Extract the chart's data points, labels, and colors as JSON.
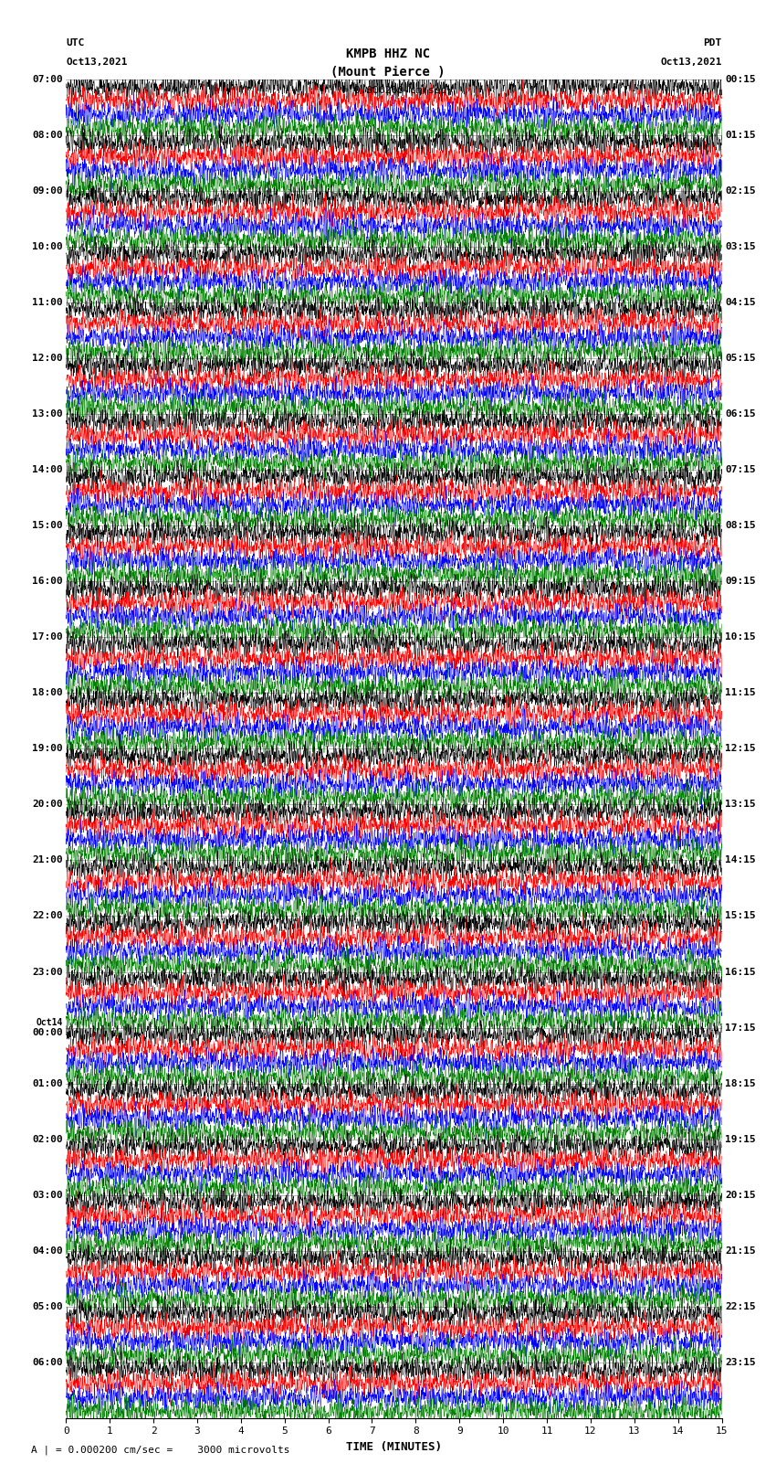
{
  "title_line1": "KMPB HHZ NC",
  "title_line2": "(Mount Pierce )",
  "title_line3": "| = 0.000200 cm/sec",
  "left_header_line1": "UTC",
  "left_header_line2": "Oct13,2021",
  "right_header_line1": "PDT",
  "right_header_line2": "Oct13,2021",
  "xlabel": "TIME (MINUTES)",
  "footer": "A | = 0.000200 cm/sec =    3000 microvolts",
  "left_times": [
    "07:00",
    "08:00",
    "09:00",
    "10:00",
    "11:00",
    "12:00",
    "13:00",
    "14:00",
    "15:00",
    "16:00",
    "17:00",
    "18:00",
    "19:00",
    "20:00",
    "21:00",
    "22:00",
    "23:00",
    "Oct14\n00:00",
    "01:00",
    "02:00",
    "03:00",
    "04:00",
    "05:00",
    "06:00"
  ],
  "right_times": [
    "00:15",
    "01:15",
    "02:15",
    "03:15",
    "04:15",
    "05:15",
    "06:15",
    "07:15",
    "08:15",
    "09:15",
    "10:15",
    "11:15",
    "12:15",
    "13:15",
    "14:15",
    "15:15",
    "16:15",
    "17:15",
    "18:15",
    "19:15",
    "20:15",
    "21:15",
    "22:15",
    "23:15"
  ],
  "colors": [
    "black",
    "red",
    "blue",
    "green"
  ],
  "n_groups": 24,
  "traces_per_group": 4,
  "n_points": 3000,
  "background_color": "white",
  "trace_amplitude": 0.42,
  "xticks": [
    0,
    1,
    2,
    3,
    4,
    5,
    6,
    7,
    8,
    9,
    10,
    11,
    12,
    13,
    14,
    15
  ],
  "plot_bg": "white",
  "linewidth": 0.35
}
